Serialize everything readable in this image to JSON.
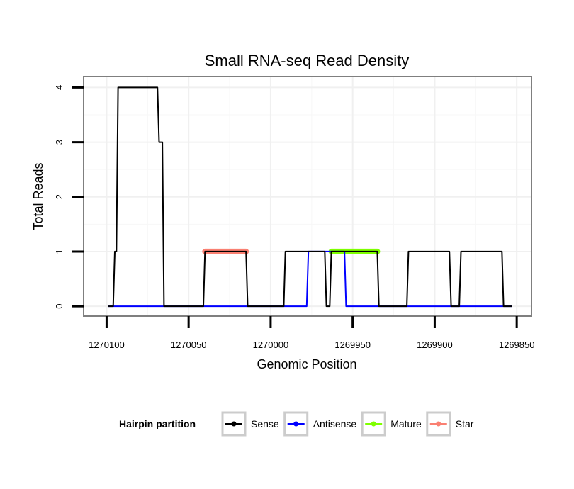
{
  "chart_data": {
    "type": "line",
    "title": "Small RNA-seq Read Density",
    "xlabel": "Genomic Position",
    "ylabel": "Total Reads",
    "xlim": [
      1270114,
      1269841
    ],
    "ylim": [
      -0.18,
      4.2
    ],
    "x_reversed": true,
    "x_ticks": [
      1270100,
      1270050,
      1270000,
      1269950,
      1269900,
      1269850
    ],
    "x_tick_labels": [
      "1270100",
      "1270050",
      "1270000",
      "1269950",
      "1269900",
      "1269850"
    ],
    "y_ticks": [
      0,
      1,
      2,
      3,
      4
    ],
    "y_tick_labels": [
      "0",
      "1",
      "2",
      "3",
      "4"
    ],
    "grid": true,
    "legend": {
      "title": "Hairpin partition",
      "position": "bottom",
      "entries": [
        {
          "label": "Sense",
          "color": "#000000"
        },
        {
          "label": "Antisense",
          "color": "#0000ff"
        },
        {
          "label": "Mature",
          "color": "#7fff00"
        },
        {
          "label": "Star",
          "color": "#fa8072"
        }
      ]
    },
    "series": [
      {
        "name": "Sense",
        "color": "#000000",
        "points": [
          [
            1270099,
            0
          ],
          [
            1270096,
            0
          ],
          [
            1270095,
            1
          ],
          [
            1270094,
            1
          ],
          [
            1270093,
            4
          ],
          [
            1270069,
            4
          ],
          [
            1270068,
            3
          ],
          [
            1270066,
            3
          ],
          [
            1270065,
            0
          ],
          [
            1270041,
            0
          ],
          [
            1270040,
            1
          ],
          [
            1270015,
            1
          ],
          [
            1270014,
            0
          ],
          [
            1269992,
            0
          ],
          [
            1269991,
            1
          ],
          [
            1269967,
            1
          ],
          [
            1269966,
            0
          ],
          [
            1269964,
            0
          ],
          [
            1269963,
            1
          ],
          [
            1269935,
            1
          ],
          [
            1269934,
            0
          ],
          [
            1269917,
            0
          ],
          [
            1269916,
            1
          ],
          [
            1269891,
            1
          ],
          [
            1269890,
            0
          ],
          [
            1269885,
            0
          ],
          [
            1269884,
            1
          ],
          [
            1269859,
            1
          ],
          [
            1269858,
            0
          ],
          [
            1269853,
            0
          ]
        ]
      },
      {
        "name": "Antisense",
        "color": "#0000ff",
        "points": [
          [
            1270099,
            0
          ],
          [
            1269978,
            0
          ],
          [
            1269977,
            1
          ],
          [
            1269955,
            1
          ],
          [
            1269954,
            0
          ],
          [
            1269853,
            0
          ]
        ]
      },
      {
        "name": "Mature",
        "color": "#7fff00",
        "points": [
          [
            1269963,
            1
          ],
          [
            1269935,
            1
          ]
        ]
      },
      {
        "name": "Star",
        "color": "#fa8072",
        "points": [
          [
            1270040,
            1
          ],
          [
            1270015,
            1
          ]
        ]
      }
    ]
  }
}
